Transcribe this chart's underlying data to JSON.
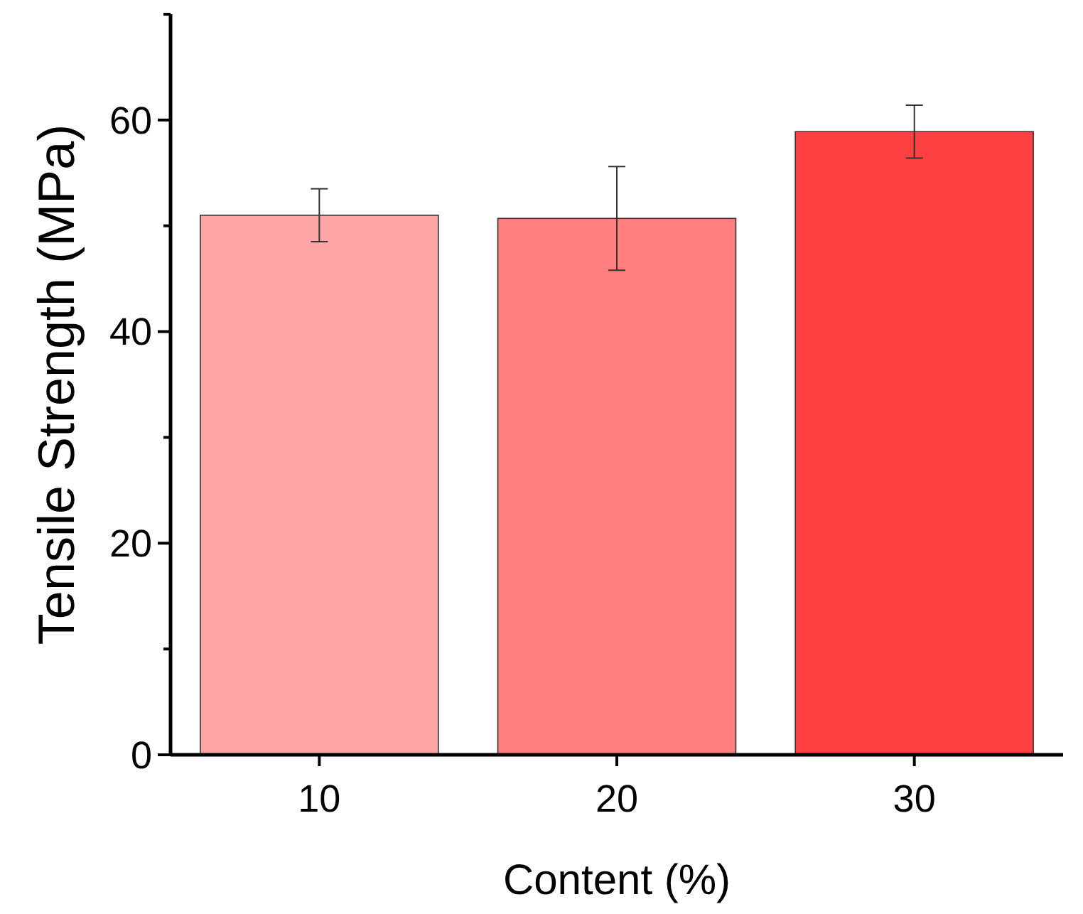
{
  "chart_data": {
    "type": "bar",
    "xlabel": "Content (%)",
    "ylabel": "Tensile Strength (MPa)",
    "categories": [
      "10",
      "20",
      "30"
    ],
    "values": [
      51.0,
      50.7,
      58.9
    ],
    "colors": [
      "#ffa6a6",
      "#ff7f7f",
      "#ff4040"
    ],
    "errors": [
      2.5,
      4.9,
      2.5
    ],
    "ylim": [
      0,
      70
    ],
    "yticks": [
      0,
      {
        "value": 10,
        "label": null
      },
      20,
      {
        "value": 30,
        "label": null
      },
      40,
      {
        "value": 50,
        "label": null
      },
      60,
      {
        "value": 70,
        "label": null
      }
    ]
  }
}
